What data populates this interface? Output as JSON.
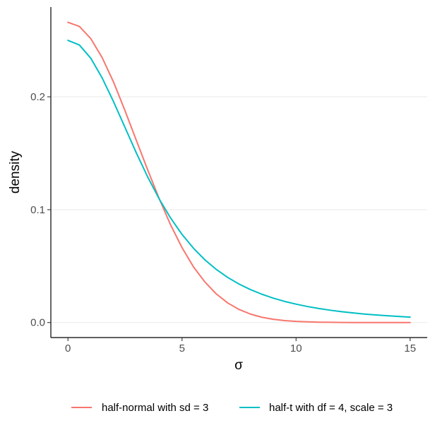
{
  "chart_data": {
    "type": "line",
    "xlabel": "σ",
    "ylabel": "density",
    "xlim": [
      -0.75,
      15.75
    ],
    "ylim": [
      -0.0133,
      0.2795
    ],
    "x_ticks": [
      0,
      5,
      10,
      15
    ],
    "x_tick_labels": [
      "0",
      "5",
      "10",
      "15"
    ],
    "y_ticks": [
      0.0,
      0.1,
      0.2
    ],
    "y_tick_labels": [
      "0.0",
      "0.1",
      "0.2"
    ],
    "grid": "horizontal major",
    "legend_position": "bottom",
    "x": [
      0,
      0.5,
      1,
      1.5,
      2,
      2.5,
      3,
      3.5,
      4,
      4.5,
      5,
      5.5,
      6,
      6.5,
      7,
      7.5,
      8,
      8.5,
      9,
      9.5,
      10,
      10.5,
      11,
      11.5,
      12,
      12.5,
      13,
      13.5,
      14,
      14.5,
      15
    ],
    "series": [
      {
        "name": "half-normal with sd = 3",
        "color": "#F8766D",
        "values": [
          0.266,
          0.2623,
          0.2516,
          0.2347,
          0.213,
          0.1878,
          0.1613,
          0.135,
          0.1098,
          0.0865,
          0.0664,
          0.0494,
          0.036,
          0.0254,
          0.0174,
          0.0116,
          0.0075,
          0.0047,
          0.0029,
          0.0017,
          0.001,
          0.0006,
          0.0003,
          0.0002,
          0.0001,
          0.0,
          0.0,
          0.0,
          0.0,
          0.0,
          0.0
        ]
      },
      {
        "name": "half-t with df = 4, scale = 3",
        "color": "#00BFC4",
        "values": [
          0.25,
          0.2459,
          0.2342,
          0.2167,
          0.1956,
          0.1729,
          0.1502,
          0.1288,
          0.1095,
          0.0926,
          0.0781,
          0.0659,
          0.0556,
          0.0471,
          0.04,
          0.0341,
          0.0292,
          0.0251,
          0.0216,
          0.0187,
          0.0163,
          0.0142,
          0.0124,
          0.0109,
          0.0096,
          0.0085,
          0.0075,
          0.0067,
          0.006,
          0.0054,
          0.0048
        ]
      }
    ]
  }
}
